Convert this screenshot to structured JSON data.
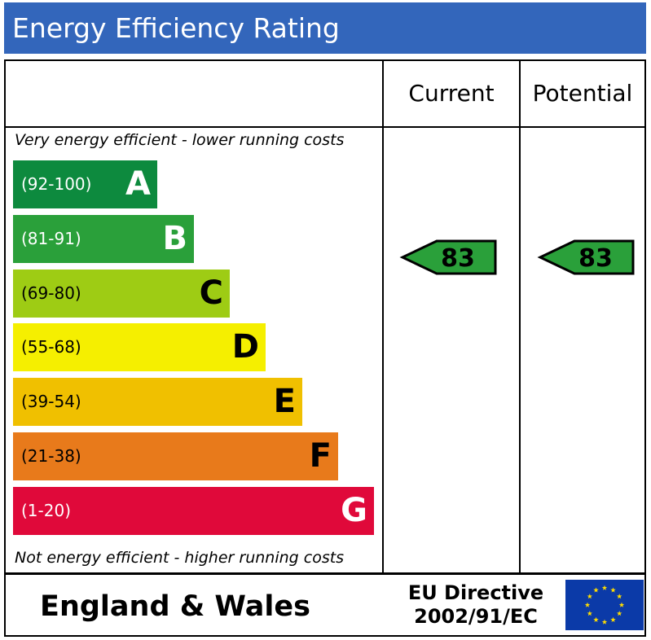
{
  "title": "Energy Efficiency Rating",
  "columns": {
    "current": "Current",
    "potential": "Potential"
  },
  "captions": {
    "top": "Very energy efficient - lower running costs",
    "bottom": "Not energy efficient - higher running costs"
  },
  "chart_data": {
    "type": "bar",
    "categories": [
      "A",
      "B",
      "C",
      "D",
      "E",
      "F",
      "G"
    ],
    "ranges": [
      "(92-100)",
      "(81-91)",
      "(69-80)",
      "(55-68)",
      "(39-54)",
      "(21-38)",
      "(1-20)"
    ],
    "colors": [
      "#008054",
      "#19b459",
      "#8dce46",
      "#ffd500",
      "#fcaa65",
      "#ef8023",
      "#e9153b"
    ],
    "current": {
      "value": 83,
      "band": "B"
    },
    "potential": {
      "value": 83,
      "band": "B"
    }
  },
  "band_colors": [
    "#0d8a3e",
    "#2aa03a",
    "#9ecc14",
    "#f5ef00",
    "#f0c000",
    "#e87a1b",
    "#e0093a"
  ],
  "footer": {
    "region": "England & Wales",
    "directive_line1": "EU Directive",
    "directive_line2": "2002/91/EC"
  }
}
